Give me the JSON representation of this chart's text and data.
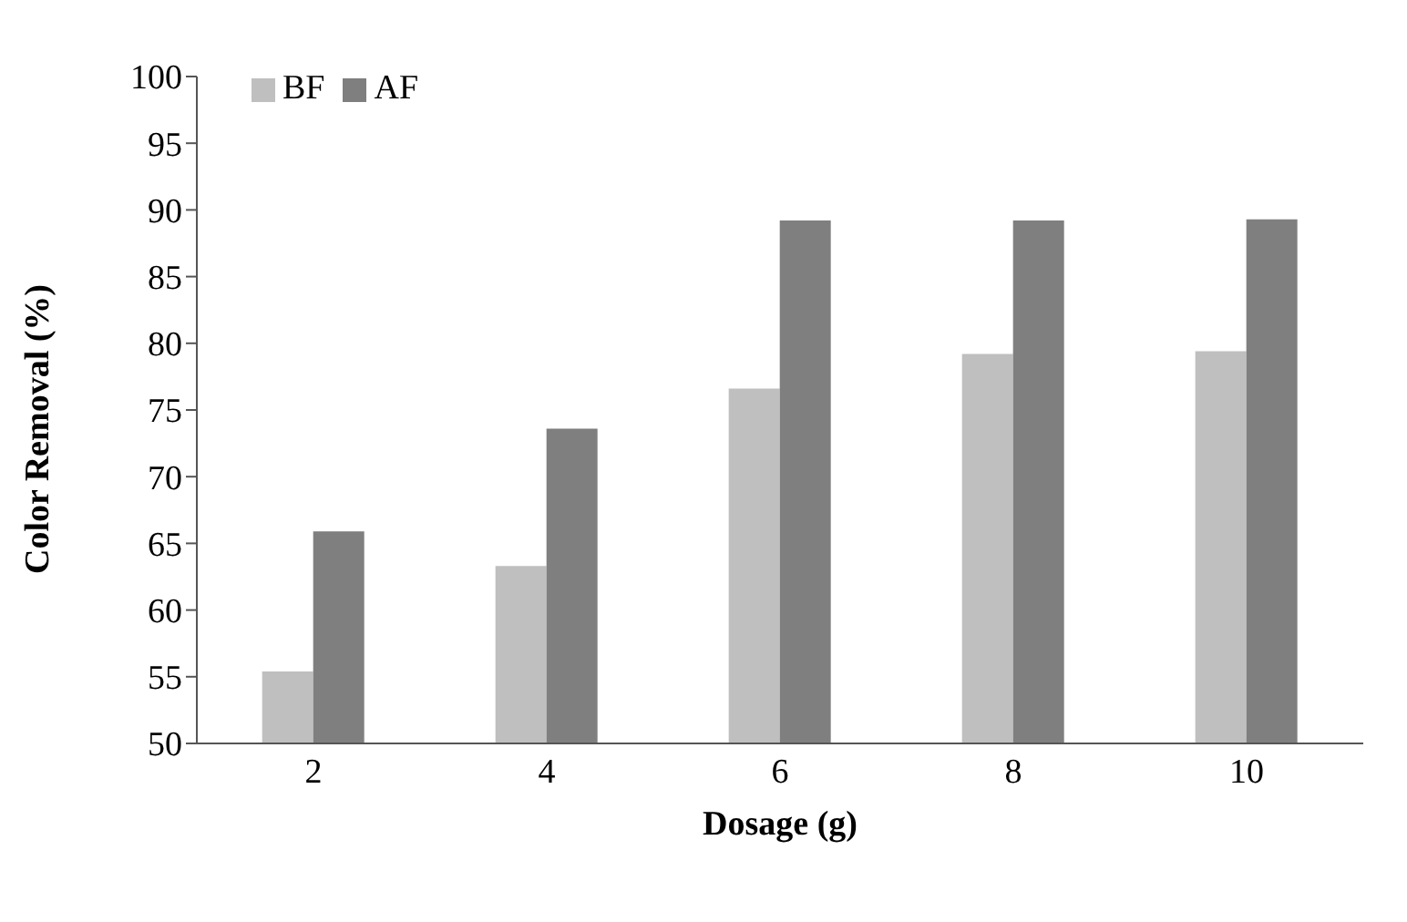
{
  "chart_data": {
    "type": "bar",
    "xlabel": "Dosage (g)",
    "ylabel": "Color Removal (%)",
    "categories": [
      "2",
      "4",
      "6",
      "8",
      "10"
    ],
    "series": [
      {
        "name": "BF",
        "color": "#bfbfbf",
        "values": [
          55.4,
          63.3,
          76.6,
          79.2,
          79.4
        ]
      },
      {
        "name": "AF",
        "color": "#7f7f7f",
        "values": [
          65.9,
          73.6,
          89.2,
          89.2,
          89.3
        ]
      }
    ],
    "ylim": [
      50,
      100
    ],
    "yticks": [
      50,
      55,
      60,
      65,
      70,
      75,
      80,
      85,
      90,
      95,
      100
    ],
    "grid": false,
    "legend": "top left"
  }
}
